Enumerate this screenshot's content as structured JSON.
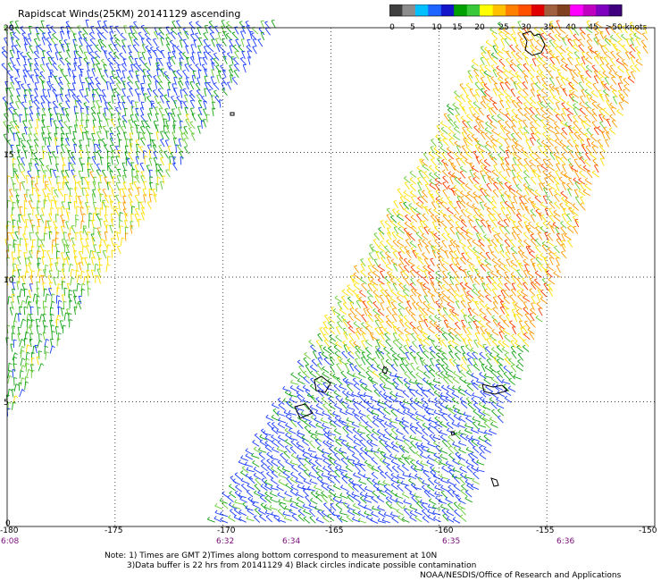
{
  "title": "Rapidscat Winds(25KM) 20141129 ascending",
  "colorbar": {
    "ticks": [
      "0",
      "5",
      "10",
      "15",
      "20",
      "25",
      "30",
      "35",
      "40",
      "45",
      ">50 knots"
    ],
    "colors": [
      "#404040",
      "#8c8c8c",
      "#00bfff",
      "#1e64ff",
      "#1414c8",
      "#00a000",
      "#38c838",
      "#ffff00",
      "#ffc000",
      "#ff8000",
      "#ff5000",
      "#e00000",
      "#a06040",
      "#804020",
      "#ff00ff",
      "#c000c0",
      "#8000c0",
      "#400080"
    ]
  },
  "axes": {
    "x_ticks": [
      "-180",
      "-175",
      "-170",
      "-165",
      "-160",
      "-155",
      "-150"
    ],
    "y_ticks": [
      "20",
      "15",
      "10",
      "5",
      "0"
    ],
    "lon_range": [
      -180,
      -150
    ],
    "lat_range": [
      0,
      20
    ]
  },
  "times": [
    "6:08",
    "6:32",
    "6:34",
    "6:35",
    "6:36"
  ],
  "notes": {
    "line1": "Note: 1) Times are GMT 2)Times along bottom correspond to measurement at 10N",
    "line2": "3)Data buffer is 22 hrs from 20141129 4) Black circles indicate possible contamination",
    "credit": "NOAA/NESDIS/Office of Research and Applications"
  },
  "wind_palette": {
    "blue": "#1a3cff",
    "green": "#16a516",
    "lightgreen": "#66cc33",
    "yellow": "#ffe000",
    "orange": "#ff9a00",
    "red": "#ff3c00",
    "black": "#000000"
  }
}
